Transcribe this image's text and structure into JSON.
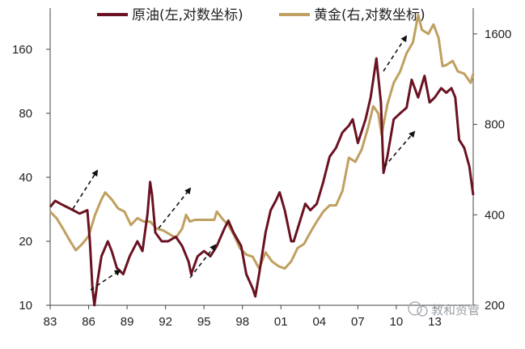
{
  "chart_data": {
    "type": "line",
    "title": "",
    "x_tick_labels": [
      "83",
      "86",
      "89",
      "92",
      "95",
      "98",
      "01",
      "04",
      "07",
      "10",
      "13"
    ],
    "y_left": {
      "scale": "log",
      "range": [
        10,
        250
      ],
      "tick_values": [
        10,
        20,
        40,
        80,
        160
      ],
      "tick_labels": [
        "10",
        "20",
        "40",
        "80",
        "160"
      ]
    },
    "y_right": {
      "scale": "log",
      "range": [
        200,
        1950
      ],
      "tick_values": [
        200,
        400,
        800,
        1600
      ],
      "tick_labels": [
        "200",
        "400",
        "800",
        "1600"
      ]
    },
    "grid": false,
    "legend_position": "top",
    "series": [
      {
        "name": "原油(左,对数坐标)",
        "axis": "left",
        "color": "#6b1222",
        "points": [
          [
            1983.0,
            29
          ],
          [
            1983.4,
            31
          ],
          [
            1983.8,
            30
          ],
          [
            1984.3,
            29
          ],
          [
            1984.8,
            28
          ],
          [
            1985.3,
            27
          ],
          [
            1985.9,
            28
          ],
          [
            1986.1,
            20
          ],
          [
            1986.3,
            12
          ],
          [
            1986.45,
            10
          ],
          [
            1986.7,
            13
          ],
          [
            1987.0,
            17
          ],
          [
            1987.5,
            20
          ],
          [
            1987.8,
            18
          ],
          [
            1988.2,
            15
          ],
          [
            1988.7,
            14
          ],
          [
            1989.2,
            17
          ],
          [
            1989.8,
            20
          ],
          [
            1990.2,
            18
          ],
          [
            1990.6,
            27
          ],
          [
            1990.8,
            38
          ],
          [
            1990.95,
            33
          ],
          [
            1991.2,
            22
          ],
          [
            1991.7,
            20
          ],
          [
            1992.2,
            20
          ],
          [
            1992.8,
            21
          ],
          [
            1993.3,
            19
          ],
          [
            1993.8,
            16
          ],
          [
            1994.0,
            14
          ],
          [
            1994.5,
            17
          ],
          [
            1995.0,
            18
          ],
          [
            1995.5,
            17
          ],
          [
            1996.0,
            19
          ],
          [
            1996.6,
            23
          ],
          [
            1996.9,
            25
          ],
          [
            1997.3,
            22
          ],
          [
            1997.9,
            19
          ],
          [
            1998.3,
            14
          ],
          [
            1998.8,
            12
          ],
          [
            1999.0,
            11
          ],
          [
            1999.3,
            14
          ],
          [
            1999.8,
            22
          ],
          [
            2000.2,
            28
          ],
          [
            2000.6,
            31
          ],
          [
            2000.9,
            34
          ],
          [
            2001.3,
            28
          ],
          [
            2001.8,
            20
          ],
          [
            2002.0,
            20
          ],
          [
            2002.5,
            25
          ],
          [
            2002.9,
            30
          ],
          [
            2003.3,
            28
          ],
          [
            2003.8,
            30
          ],
          [
            2004.3,
            38
          ],
          [
            2004.8,
            50
          ],
          [
            2005.3,
            55
          ],
          [
            2005.8,
            65
          ],
          [
            2006.3,
            70
          ],
          [
            2006.6,
            75
          ],
          [
            2007.0,
            58
          ],
          [
            2007.6,
            75
          ],
          [
            2008.0,
            95
          ],
          [
            2008.45,
            145
          ],
          [
            2008.8,
            90
          ],
          [
            2009.0,
            42
          ],
          [
            2009.3,
            50
          ],
          [
            2009.8,
            75
          ],
          [
            2010.3,
            80
          ],
          [
            2010.8,
            85
          ],
          [
            2011.2,
            115
          ],
          [
            2011.7,
            95
          ],
          [
            2012.2,
            120
          ],
          [
            2012.6,
            90
          ],
          [
            2013.0,
            95
          ],
          [
            2013.5,
            105
          ],
          [
            2013.9,
            100
          ],
          [
            2014.3,
            105
          ],
          [
            2014.6,
            95
          ],
          [
            2014.9,
            60
          ],
          [
            2015.3,
            55
          ],
          [
            2015.7,
            45
          ],
          [
            2016.0,
            33
          ]
        ]
      },
      {
        "name": "黄金(右,对数坐标)",
        "axis": "right",
        "color": "#bfa060",
        "points": [
          [
            1983.0,
            410
          ],
          [
            1983.5,
            390
          ],
          [
            1984.0,
            360
          ],
          [
            1984.5,
            330
          ],
          [
            1985.0,
            305
          ],
          [
            1985.5,
            320
          ],
          [
            1986.0,
            340
          ],
          [
            1986.5,
            400
          ],
          [
            1987.0,
            450
          ],
          [
            1987.3,
            475
          ],
          [
            1987.8,
            450
          ],
          [
            1988.3,
            420
          ],
          [
            1988.8,
            410
          ],
          [
            1989.3,
            370
          ],
          [
            1989.8,
            390
          ],
          [
            1990.3,
            380
          ],
          [
            1990.8,
            380
          ],
          [
            1991.3,
            360
          ],
          [
            1991.8,
            355
          ],
          [
            1992.3,
            345
          ],
          [
            1992.8,
            335
          ],
          [
            1993.3,
            360
          ],
          [
            1993.6,
            400
          ],
          [
            1993.9,
            380
          ],
          [
            1994.3,
            385
          ],
          [
            1994.8,
            385
          ],
          [
            1995.3,
            385
          ],
          [
            1995.8,
            385
          ],
          [
            1996.0,
            410
          ],
          [
            1996.5,
            385
          ],
          [
            1996.9,
            370
          ],
          [
            1997.3,
            345
          ],
          [
            1997.8,
            310
          ],
          [
            1998.3,
            295
          ],
          [
            1998.8,
            290
          ],
          [
            1999.3,
            265
          ],
          [
            1999.8,
            300
          ],
          [
            2000.3,
            280
          ],
          [
            2000.8,
            270
          ],
          [
            2001.3,
            265
          ],
          [
            2001.8,
            280
          ],
          [
            2002.3,
            310
          ],
          [
            2002.8,
            320
          ],
          [
            2003.3,
            350
          ],
          [
            2003.8,
            380
          ],
          [
            2004.3,
            410
          ],
          [
            2004.8,
            430
          ],
          [
            2005.3,
            430
          ],
          [
            2005.8,
            480
          ],
          [
            2006.3,
            620
          ],
          [
            2006.8,
            600
          ],
          [
            2007.3,
            660
          ],
          [
            2007.8,
            780
          ],
          [
            2008.2,
            920
          ],
          [
            2008.6,
            870
          ],
          [
            2008.85,
            740
          ],
          [
            2009.3,
            930
          ],
          [
            2009.8,
            1100
          ],
          [
            2010.3,
            1200
          ],
          [
            2010.8,
            1380
          ],
          [
            2011.3,
            1500
          ],
          [
            2011.7,
            1850
          ],
          [
            2012.0,
            1650
          ],
          [
            2012.5,
            1600
          ],
          [
            2012.9,
            1720
          ],
          [
            2013.3,
            1550
          ],
          [
            2013.6,
            1250
          ],
          [
            2013.9,
            1260
          ],
          [
            2014.4,
            1300
          ],
          [
            2014.8,
            1200
          ],
          [
            2015.3,
            1180
          ],
          [
            2015.8,
            1100
          ],
          [
            2016.0,
            1180
          ]
        ]
      }
    ],
    "annotations": "dashed arrows marking co-movement episodes"
  },
  "watermark": {
    "text": "敦和资管"
  }
}
